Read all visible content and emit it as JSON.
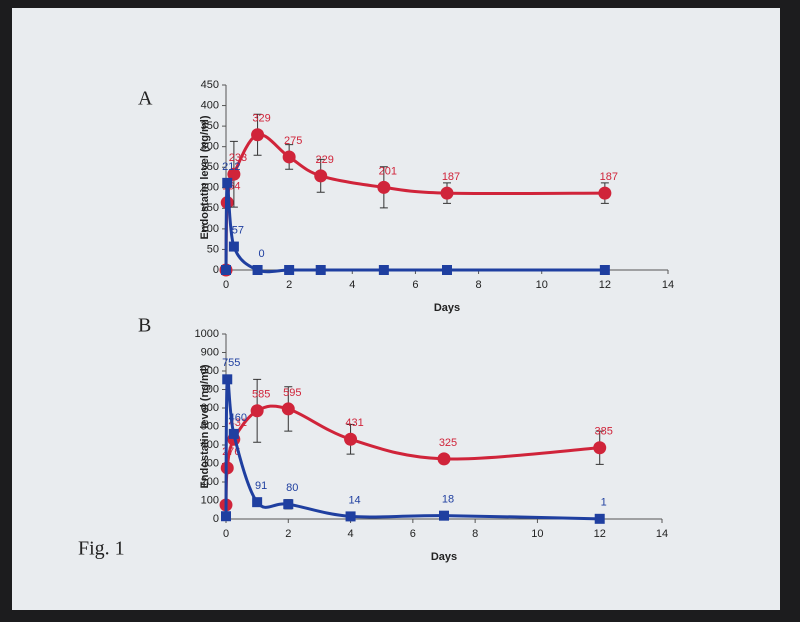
{
  "figure_label": "Fig. 1",
  "chart_data": [
    {
      "type": "line",
      "panel_label": "A",
      "x_label": "Days",
      "y_label": "Endostatin level (ng/ml)",
      "xlim": [
        0,
        14
      ],
      "xticks": [
        0,
        2,
        4,
        6,
        8,
        10,
        12,
        14
      ],
      "ylim": [
        0,
        450
      ],
      "yticks": [
        0,
        50,
        100,
        150,
        200,
        250,
        300,
        350,
        400,
        450
      ],
      "series": [
        {
          "name": "Series 1",
          "color": "#d0243a",
          "marker": "circle",
          "x": [
            0,
            0.04,
            0.25,
            1,
            2,
            3,
            5,
            7,
            12
          ],
          "values": [
            0,
            164,
            233,
            329,
            275,
            229,
            201,
            187,
            187
          ],
          "value_labels": [
            null,
            "164",
            "233",
            "329",
            "275",
            "229",
            "201",
            "187",
            "187"
          ],
          "errors": [
            null,
            null,
            80,
            50,
            30,
            40,
            50,
            25,
            25
          ]
        },
        {
          "name": "Series 2",
          "color": "#1f3fa0",
          "marker": "square",
          "x": [
            0,
            0.04,
            0.25,
            1,
            2,
            3,
            5,
            7,
            12
          ],
          "values": [
            0,
            212,
            57,
            0,
            0,
            0,
            0,
            0,
            0
          ],
          "value_labels": [
            null,
            "212",
            "57",
            "0",
            null,
            null,
            null,
            null,
            null
          ],
          "errors": [
            null,
            null,
            null,
            null,
            null,
            null,
            null,
            null,
            null
          ]
        }
      ]
    },
    {
      "type": "line",
      "panel_label": "B",
      "x_label": "Days",
      "y_label": "Endostatin level (ng/ml)",
      "xlim": [
        0,
        14
      ],
      "xticks": [
        0,
        2,
        4,
        6,
        8,
        10,
        12,
        14
      ],
      "ylim": [
        0,
        1000
      ],
      "yticks": [
        0,
        100,
        200,
        300,
        400,
        500,
        600,
        700,
        800,
        900,
        1000
      ],
      "series": [
        {
          "name": "Series 1",
          "color": "#d0243a",
          "marker": "circle",
          "x": [
            0,
            0.04,
            0.25,
            1,
            2,
            4,
            7,
            12
          ],
          "values": [
            76,
            276,
            431,
            585,
            595,
            431,
            325,
            385
          ],
          "value_labels": [
            null,
            "276",
            "431",
            "585",
            "595",
            "431",
            "325",
            "385"
          ],
          "errors": [
            null,
            null,
            null,
            170,
            120,
            80,
            10,
            90
          ]
        },
        {
          "name": "Series 2",
          "color": "#1f3fa0",
          "marker": "square",
          "x": [
            0,
            0.04,
            0.25,
            1,
            2,
            4,
            7,
            12
          ],
          "values": [
            15,
            755,
            460,
            91,
            80,
            14,
            18,
            1
          ],
          "value_labels": [
            null,
            "755",
            "460",
            "91",
            "80",
            "14",
            "18",
            "1"
          ],
          "errors": [
            null,
            null,
            null,
            null,
            25,
            null,
            null,
            null
          ]
        }
      ]
    }
  ]
}
